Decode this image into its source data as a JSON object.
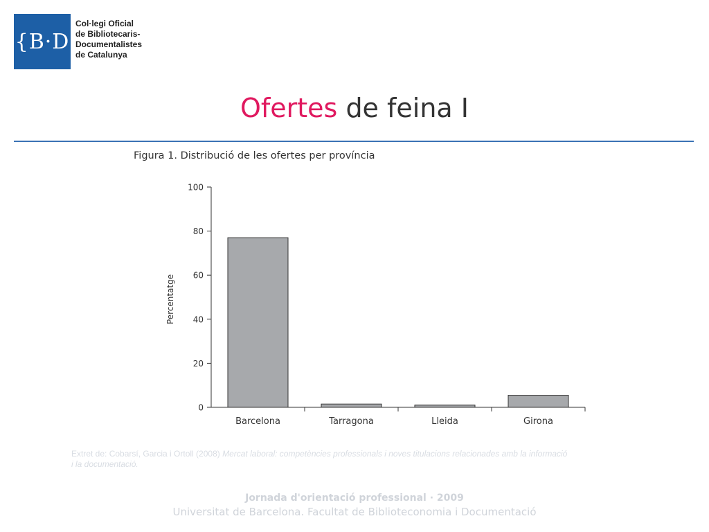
{
  "logo": {
    "mark": "{B·D"
  },
  "organization": {
    "lines": [
      "Col·legi Oficial",
      "de Bibliotecaris-",
      "Documentalistes",
      "de Catalunya"
    ]
  },
  "slide": {
    "title_accent": "Ofertes",
    "title_rest": " de feina I"
  },
  "figure": {
    "caption": "Figura 1. Distribució de les ofertes per província"
  },
  "chart_data": {
    "type": "bar",
    "title": "Figura 1. Distribució de les ofertes per província",
    "xlabel": "",
    "ylabel": "Percentatge",
    "categories": [
      "Barcelona",
      "Tarragona",
      "Lleida",
      "Girona"
    ],
    "values": [
      77,
      1.5,
      1,
      5.5
    ],
    "ylim": [
      0,
      100
    ],
    "yticks": [
      0,
      20,
      40,
      60,
      80,
      100
    ],
    "grid": false,
    "bar_color": "#a7a9ac"
  },
  "source": {
    "prefix": "Extret de: Cobarsí, Garcia i Ortoll (2008) ",
    "title_italic": "Mercat laboral: competències professionals i noves titulacions relacionades amb la informació i la documentació."
  },
  "footer": {
    "line1": "Jornada d'orientació professional · 2009",
    "line2": "Universitat de Barcelona. Facultat de Biblioteconomia i Documentació"
  }
}
